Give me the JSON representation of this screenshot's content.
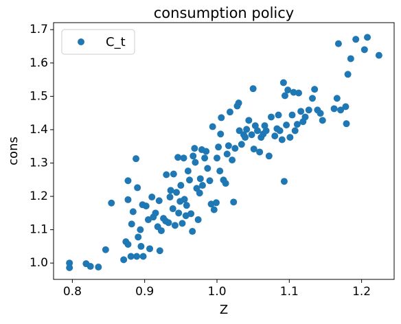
{
  "chart_data": {
    "type": "scatter",
    "title": "consumption policy",
    "x_label": "Z",
    "y_label": "cons",
    "legend": "upper left",
    "grid": false,
    "xlim": [
      0.774,
      1.245
    ],
    "ylim": [
      0.951,
      1.721
    ],
    "xticks": [
      0.8,
      0.9,
      {
        "value": 1,
        "label": "1.0"
      },
      1.1,
      1.2
    ],
    "yticks": [
      {
        "value": 1,
        "label": "1.0"
      },
      1.1,
      1.2,
      1.3,
      1.4,
      1.5,
      1.6,
      1.7
    ],
    "series": [
      {
        "name": "C_t",
        "color": "#1f77b4",
        "x": [
          0.796,
          0.796,
          0.819,
          0.825,
          0.836,
          0.846,
          0.854,
          0.871,
          0.874,
          0.877,
          0.877,
          0.881,
          0.877,
          0.882,
          0.884,
          0.888,
          0.889,
          0.891,
          0.894,
          0.895,
          0.898,
          0.89,
          0.897,
          0.902,
          0.905,
          0.907,
          0.91,
          0.912,
          0.915,
          0.918,
          0.92,
          0.921,
          0.923,
          0.926,
          0.93,
          0.929,
          0.933,
          0.935,
          0.936,
          0.939,
          0.94,
          0.942,
          0.944,
          0.946,
          0.947,
          0.949,
          0.95,
          0.952,
          0.954,
          0.955,
          0.957,
          0.958,
          0.96,
          0.962,
          0.964,
          0.966,
          0.967,
          0.969,
          0.97,
          0.972,
          0.974,
          0.976,
          0.977,
          0.979,
          0.98,
          0.983,
          0.985,
          0.987,
          0.99,
          0.992,
          0.994,
          0.996,
          0.999,
          1.0,
          1.002,
          1.004,
          1.005,
          1.006,
          1.009,
          1.012,
          1.014,
          1.016,
          1.018,
          1.021,
          1.023,
          1.025,
          1.028,
          1.03,
          1.031,
          1.034,
          1.037,
          1.039,
          1.041,
          1.044,
          1.048,
          1.05,
          1.051,
          1.053,
          1.056,
          1.059,
          1.061,
          1.064,
          1.066,
          1.068,
          1.072,
          1.075,
          1.08,
          1.083,
          1.085,
          1.087,
          1.09,
          1.092,
          1.093,
          1.094,
          1.096,
          1.098,
          1.101,
          1.104,
          1.106,
          1.108,
          1.111,
          1.113,
          1.116,
          1.119,
          1.122,
          1.127,
          1.132,
          1.135,
          1.139,
          1.143,
          1.146,
          1.162,
          1.166,
          1.168,
          1.171,
          1.178,
          1.179,
          1.181,
          1.185,
          1.192,
          1.204,
          1.208,
          1.224
        ],
        "values": [
          1.0,
          0.986,
          0.998,
          0.99,
          0.988,
          1.04,
          1.18,
          1.01,
          1.064,
          1.056,
          1.247,
          1.02,
          1.19,
          1.117,
          1.154,
          1.313,
          1.02,
          1.078,
          1.1,
          1.05,
          1.02,
          1.226,
          1.175,
          1.171,
          1.13,
          1.043,
          1.198,
          1.138,
          1.15,
          1.109,
          1.187,
          1.037,
          1.097,
          1.134,
          1.265,
          1.126,
          1.121,
          1.198,
          1.218,
          1.163,
          1.267,
          1.113,
          1.212,
          1.317,
          1.15,
          1.185,
          1.233,
          1.119,
          1.315,
          1.191,
          1.142,
          1.173,
          1.276,
          1.249,
          1.148,
          1.095,
          1.321,
          1.344,
          1.302,
          1.224,
          1.13,
          1.21,
          1.253,
          1.34,
          1.233,
          1.315,
          1.335,
          1.284,
          1.247,
          1.177,
          1.409,
          1.16,
          1.181,
          1.315,
          1.348,
          1.276,
          1.387,
          1.436,
          1.249,
          1.239,
          1.327,
          1.352,
          1.453,
          1.309,
          1.183,
          1.344,
          1.471,
          1.48,
          1.397,
          1.356,
          1.385,
          1.377,
          1.401,
          1.428,
          1.385,
          1.523,
          1.342,
          1.412,
          1.397,
          1.333,
          1.377,
          1.387,
          1.412,
          1.397,
          1.321,
          1.438,
          1.381,
          1.403,
          1.444,
          1.397,
          1.37,
          1.541,
          1.245,
          1.502,
          1.414,
          1.519,
          1.377,
          1.444,
          1.512,
          1.397,
          1.416,
          1.51,
          1.455,
          1.424,
          1.438,
          1.459,
          1.494,
          1.521,
          1.459,
          1.449,
          1.428,
          1.463,
          1.494,
          1.658,
          1.459,
          1.469,
          1.418,
          1.566,
          1.613,
          1.671,
          1.64,
          1.677,
          1.623
        ]
      }
    ]
  }
}
